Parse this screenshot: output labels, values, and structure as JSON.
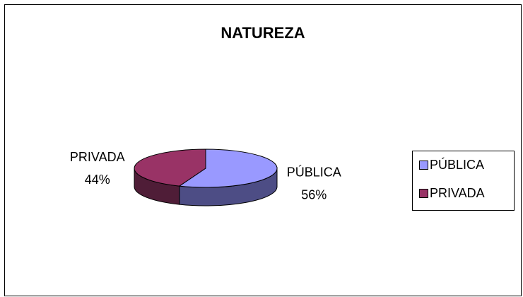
{
  "chart_data": {
    "type": "pie",
    "title": "NATUREZA",
    "categories": [
      "PÚBLICA",
      "PRIVADA"
    ],
    "values": [
      56,
      44
    ],
    "value_labels": [
      "56%",
      "44%"
    ],
    "colors": [
      "#9999ff",
      "#993366"
    ],
    "side_colors": [
      "#4d4d85",
      "#4f1d37"
    ],
    "legend": "right"
  }
}
